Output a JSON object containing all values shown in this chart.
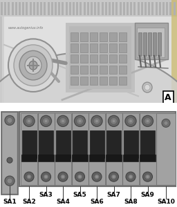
{
  "watermark": "www.autogenius.info",
  "label_A": "A",
  "fuse_labels": [
    "SA1",
    "SA2",
    "SA3",
    "SA4",
    "SA5",
    "SA6",
    "SA7",
    "SA8",
    "SA9",
    "SA10"
  ],
  "label_fontsize": 6.5,
  "photo_bg": "#e8e8e8",
  "photo_mid": "#c0c0c0",
  "photo_dark": "#888888",
  "photo_light": "#d8d8d8",
  "fuse_box_bg": "#b0b0b0",
  "fuse_bg": "#9a9a9a",
  "fuse_dark": "#2a2a2a",
  "fuse_connector": "#555555",
  "fuse_border": "#666666",
  "sa1_bg": "#888888",
  "sa10_bg": "#929292"
}
